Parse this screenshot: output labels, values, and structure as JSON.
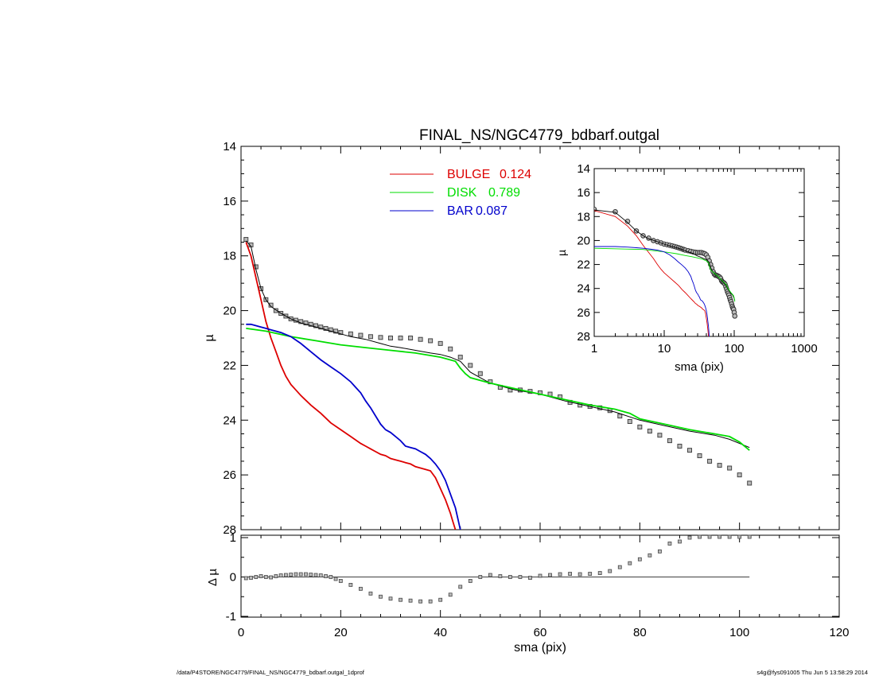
{
  "chart_data": {
    "type": "line",
    "title": "FINAL_NS/NGC4779_bdbarf.outgal",
    "xlabel": "sma (pix)",
    "ylabel": "µ",
    "xlim": [
      0,
      120
    ],
    "ylim": [
      28,
      14
    ],
    "xticks": [
      "0",
      "20",
      "40",
      "60",
      "80",
      "100",
      "120"
    ],
    "yticks": [
      "14",
      "16",
      "18",
      "20",
      "22",
      "24",
      "26",
      "28"
    ],
    "legend": {
      "placement": "top-center",
      "entries": [
        {
          "label": "BULGE",
          "value": "0.124",
          "color": "#dd0000"
        },
        {
          "label": "DISK",
          "value": "0.789",
          "color": "#00dd00"
        },
        {
          "label": "BAR",
          "value": "0.087",
          "color": "#0000cc"
        }
      ]
    },
    "observed_points": {
      "name": "",
      "x": [
        1,
        2,
        3,
        4,
        5,
        6,
        7,
        8,
        9,
        10,
        11,
        12,
        13,
        14,
        15,
        16,
        17,
        18,
        19,
        20,
        22,
        24,
        26,
        28,
        30,
        32,
        34,
        36,
        38,
        40,
        42,
        44,
        46,
        48,
        50,
        52,
        54,
        56,
        58,
        60,
        62,
        64,
        66,
        68,
        70,
        72,
        74,
        76,
        78,
        80,
        82,
        84,
        86,
        88,
        90,
        92,
        94,
        96,
        98,
        100,
        102
      ],
      "y": [
        17.4,
        17.6,
        18.4,
        19.2,
        19.6,
        19.8,
        20.0,
        20.1,
        20.2,
        20.3,
        20.35,
        20.4,
        20.45,
        20.5,
        20.55,
        20.6,
        20.65,
        20.7,
        20.75,
        20.8,
        20.85,
        20.9,
        20.95,
        20.98,
        21.0,
        21.0,
        21.0,
        21.05,
        21.1,
        21.2,
        21.4,
        21.7,
        22.0,
        22.3,
        22.6,
        22.8,
        22.9,
        22.9,
        22.95,
        23.0,
        23.05,
        23.15,
        23.35,
        23.45,
        23.5,
        23.55,
        23.65,
        23.85,
        24.05,
        24.25,
        24.4,
        24.55,
        24.75,
        24.95,
        25.1,
        25.3,
        25.5,
        25.65,
        25.75,
        26.0,
        26.3
      ]
    },
    "series": [
      {
        "name": "model",
        "color": "#000000",
        "x": [
          1,
          2,
          3,
          4,
          5,
          6,
          8,
          10,
          12,
          14,
          16,
          18,
          20,
          22,
          25,
          28,
          30,
          32,
          35,
          38,
          40,
          42,
          44,
          46,
          48,
          50,
          55,
          60,
          65,
          70,
          75,
          80,
          85,
          90,
          95,
          98,
          102
        ],
        "y": [
          17.45,
          17.65,
          18.5,
          19.2,
          19.6,
          19.85,
          20.1,
          20.3,
          20.45,
          20.55,
          20.65,
          20.75,
          20.85,
          20.95,
          21.05,
          21.2,
          21.3,
          21.35,
          21.45,
          21.55,
          21.6,
          21.7,
          21.85,
          22.25,
          22.45,
          22.65,
          22.9,
          23.05,
          23.3,
          23.5,
          23.7,
          24.0,
          24.2,
          24.4,
          24.55,
          24.7,
          25.0
        ]
      },
      {
        "name": "BULGE",
        "color": "#dd0000",
        "x": [
          1,
          2,
          3,
          4,
          5,
          6,
          7,
          8,
          9,
          10,
          12,
          14,
          16,
          18,
          20,
          22,
          24,
          25,
          26,
          27,
          28,
          29,
          30,
          31,
          32,
          33,
          34,
          35,
          36,
          37,
          38,
          39,
          40,
          41,
          42,
          42.5,
          43
        ],
        "y": [
          17.5,
          18.0,
          18.8,
          19.6,
          20.4,
          21.0,
          21.5,
          22.0,
          22.4,
          22.7,
          23.1,
          23.45,
          23.75,
          24.1,
          24.35,
          24.6,
          24.85,
          24.95,
          25.05,
          25.15,
          25.25,
          25.3,
          25.4,
          25.45,
          25.5,
          25.55,
          25.6,
          25.7,
          25.75,
          25.8,
          25.85,
          26.1,
          26.5,
          26.9,
          27.4,
          27.7,
          28.0
        ]
      },
      {
        "name": "DISK",
        "color": "#00dd00",
        "x": [
          1,
          5,
          10,
          15,
          20,
          25,
          30,
          35,
          40,
          43,
          44,
          45,
          46,
          50,
          55,
          60,
          65,
          70,
          75,
          78,
          80,
          85,
          90,
          95,
          98,
          100,
          102
        ],
        "y": [
          20.65,
          20.75,
          20.95,
          21.1,
          21.25,
          21.35,
          21.45,
          21.55,
          21.7,
          21.85,
          22.1,
          22.3,
          22.45,
          22.65,
          22.85,
          23.05,
          23.25,
          23.45,
          23.6,
          23.75,
          23.95,
          24.15,
          24.35,
          24.5,
          24.6,
          24.8,
          25.1
        ]
      },
      {
        "name": "BAR",
        "color": "#0000cc",
        "x": [
          1,
          2,
          3,
          4,
          5,
          6,
          8,
          10,
          12,
          14,
          16,
          18,
          20,
          22,
          23,
          24,
          25,
          26,
          27,
          28,
          29,
          30,
          31,
          32,
          33,
          34,
          35,
          36,
          37,
          38,
          39,
          40,
          41,
          42,
          43,
          43.5,
          44
        ],
        "y": [
          20.5,
          20.5,
          20.55,
          20.6,
          20.65,
          20.7,
          20.8,
          20.95,
          21.2,
          21.5,
          21.8,
          22.05,
          22.3,
          22.6,
          22.8,
          23.0,
          23.3,
          23.55,
          23.85,
          24.15,
          24.35,
          24.45,
          24.6,
          24.75,
          24.95,
          25.0,
          25.05,
          25.15,
          25.25,
          25.4,
          25.6,
          25.85,
          26.2,
          26.7,
          27.2,
          27.6,
          28.0
        ]
      }
    ],
    "inset": {
      "xlabel": "sma (pix)",
      "ylabel": "µ",
      "xscale": "log",
      "xlim": [
        1,
        1000
      ],
      "ylim": [
        28,
        14
      ],
      "xticks": [
        "1",
        "10",
        "100",
        "1000"
      ],
      "yticks": [
        "14",
        "16",
        "18",
        "20",
        "22",
        "24",
        "26",
        "28"
      ]
    },
    "residual": {
      "ylabel": "Δ µ",
      "ylim": [
        -1,
        1
      ],
      "yticks": [
        "1",
        "0",
        "-1"
      ],
      "x": [
        1,
        2,
        3,
        4,
        5,
        6,
        7,
        8,
        9,
        10,
        11,
        12,
        13,
        14,
        15,
        16,
        17,
        18,
        19,
        20,
        22,
        24,
        26,
        28,
        30,
        32,
        34,
        36,
        38,
        40,
        42,
        44,
        46,
        48,
        50,
        52,
        54,
        56,
        58,
        60,
        62,
        64,
        66,
        68,
        70,
        72,
        74,
        76,
        78,
        80,
        82,
        84,
        86,
        88,
        90,
        92,
        94,
        96,
        98,
        100,
        102
      ],
      "y": [
        -0.03,
        -0.02,
        0.0,
        0.02,
        0.0,
        -0.01,
        0.02,
        0.04,
        0.05,
        0.06,
        0.07,
        0.07,
        0.07,
        0.06,
        0.05,
        0.04,
        0.02,
        0.0,
        -0.05,
        -0.1,
        -0.2,
        -0.3,
        -0.42,
        -0.5,
        -0.55,
        -0.58,
        -0.6,
        -0.62,
        -0.62,
        -0.58,
        -0.45,
        -0.25,
        -0.1,
        0.0,
        0.05,
        0.02,
        0.0,
        0.0,
        -0.02,
        0.03,
        0.05,
        0.07,
        0.08,
        0.07,
        0.08,
        0.1,
        0.15,
        0.25,
        0.35,
        0.45,
        0.55,
        0.65,
        0.85,
        0.9,
        1.0,
        1.05,
        1.1,
        1.1,
        1.1,
        1.1,
        1.1
      ]
    }
  },
  "footer": {
    "left": "/data/P4STORE/NGC4779/FINAL_NS/NGC4779_bdbarf.outgal_1dprof",
    "right": "s4g@fys091005  Thu Jun  5 13:58:29 2014"
  }
}
